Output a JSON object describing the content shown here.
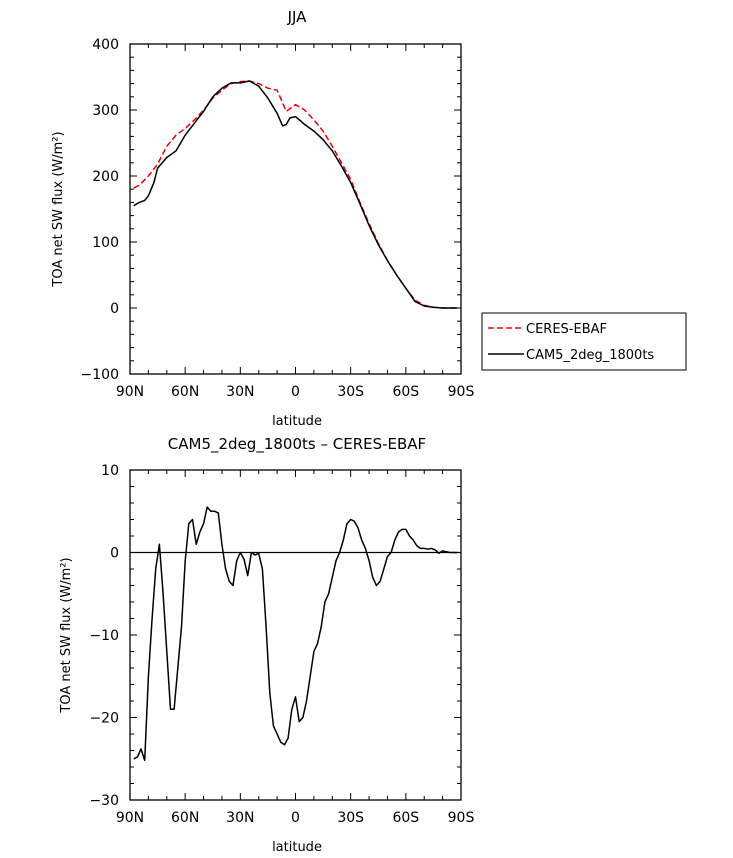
{
  "chart_data": [
    {
      "type": "line",
      "title": "JJA",
      "xlabel": "latitude",
      "ylabel": "TOA net SW flux (W/m²)",
      "xlim": [
        -90,
        90
      ],
      "ylim": [
        -100,
        400
      ],
      "yticks": [
        -100,
        0,
        100,
        200,
        300,
        400
      ],
      "xtick_labels": [
        "90N",
        "60N",
        "30N",
        "0",
        "30S",
        "60S",
        "90S"
      ],
      "legend_position": "right",
      "series": [
        {
          "name": "CERES-EBAF",
          "color": "#e8000b",
          "style": "dashed",
          "x": [
            -88,
            -85,
            -80,
            -75,
            -70,
            -65,
            -60,
            -55,
            -50,
            -45,
            -40,
            -35,
            -30,
            -25,
            -20,
            -15,
            -10,
            -5,
            0,
            5,
            10,
            15,
            20,
            25,
            30,
            35,
            40,
            45,
            50,
            55,
            60,
            65,
            70,
            75,
            80,
            85,
            88
          ],
          "y": [
            182,
            186,
            200,
            218,
            245,
            262,
            272,
            285,
            300,
            318,
            330,
            340,
            343,
            344,
            340,
            333,
            330,
            298,
            308,
            300,
            285,
            268,
            245,
            220,
            195,
            160,
            128,
            98,
            72,
            50,
            30,
            12,
            4,
            1,
            0,
            0,
            0
          ]
        },
        {
          "name": "CAM5_2deg_1800ts",
          "color": "#000000",
          "style": "solid",
          "x": [
            -88,
            -85,
            -82,
            -80,
            -77,
            -75,
            -70,
            -65,
            -60,
            -55,
            -50,
            -45,
            -40,
            -35,
            -30,
            -25,
            -20,
            -15,
            -10,
            -7,
            -5,
            -3,
            0,
            5,
            10,
            15,
            20,
            25,
            30,
            35,
            40,
            45,
            50,
            55,
            60,
            65,
            70,
            75,
            80,
            85,
            88
          ],
          "y": [
            155,
            160,
            163,
            170,
            190,
            212,
            228,
            238,
            262,
            280,
            298,
            320,
            333,
            341,
            341,
            344,
            336,
            318,
            295,
            276,
            278,
            288,
            290,
            278,
            268,
            255,
            238,
            215,
            190,
            158,
            125,
            96,
            72,
            50,
            30,
            10,
            3,
            1,
            0,
            0,
            0
          ]
        }
      ]
    },
    {
      "type": "line",
      "title": "CAM5_2deg_1800ts – CERES-EBAF",
      "xlabel": "latitude",
      "ylabel": "TOA net SW flux (W/m²)",
      "xlim": [
        -90,
        90
      ],
      "ylim": [
        -30,
        10
      ],
      "yticks": [
        -30,
        -20,
        -10,
        0,
        10
      ],
      "xtick_labels": [
        "90N",
        "60N",
        "30N",
        "0",
        "30S",
        "60S",
        "90S"
      ],
      "zero_line": true,
      "series": [
        {
          "color": "#000000",
          "style": "solid",
          "x": [
            -88,
            -86,
            -84,
            -82,
            -80,
            -78,
            -76,
            -74,
            -72,
            -70,
            -68,
            -66,
            -64,
            -62,
            -60,
            -58,
            -56,
            -54,
            -52,
            -50,
            -48,
            -46,
            -44,
            -42,
            -40,
            -38,
            -36,
            -34,
            -32,
            -30,
            -28,
            -26,
            -24,
            -22,
            -20,
            -18,
            -16,
            -14,
            -12,
            -10,
            -8,
            -6,
            -4,
            -2,
            0,
            2,
            4,
            6,
            8,
            10,
            12,
            14,
            16,
            18,
            20,
            22,
            24,
            26,
            28,
            30,
            32,
            34,
            36,
            38,
            40,
            42,
            44,
            46,
            48,
            50,
            52,
            54,
            56,
            58,
            60,
            62,
            64,
            66,
            68,
            70,
            72,
            74,
            76,
            78,
            80,
            82,
            84,
            86,
            88
          ],
          "y": [
            -25,
            -24.8,
            -23.8,
            -25.2,
            -15,
            -8,
            -2,
            1,
            -5,
            -12,
            -19,
            -19,
            -14,
            -9,
            -1,
            3.5,
            4,
            1,
            2.5,
            3.5,
            5.5,
            5,
            5,
            4.8,
            1,
            -2,
            -3.5,
            -4,
            -1,
            0,
            -0.8,
            -2.8,
            0,
            -0.3,
            -0.1,
            -2,
            -9,
            -17,
            -21,
            -22,
            -23,
            -23.3,
            -22.5,
            -19,
            -17.5,
            -20.5,
            -20,
            -18,
            -15,
            -12,
            -11,
            -9,
            -6,
            -5,
            -3,
            -1,
            0,
            1.5,
            3.5,
            4,
            3.8,
            3,
            1.5,
            0.5,
            -1,
            -3,
            -4,
            -3.5,
            -2,
            -0.5,
            0,
            1.5,
            2.5,
            2.8,
            2.8,
            2,
            1.5,
            0.8,
            0.5,
            0.5,
            0.4,
            0.5,
            0.3,
            -0.1,
            0.2,
            0.1,
            0,
            0,
            0
          ]
        }
      ]
    }
  ]
}
